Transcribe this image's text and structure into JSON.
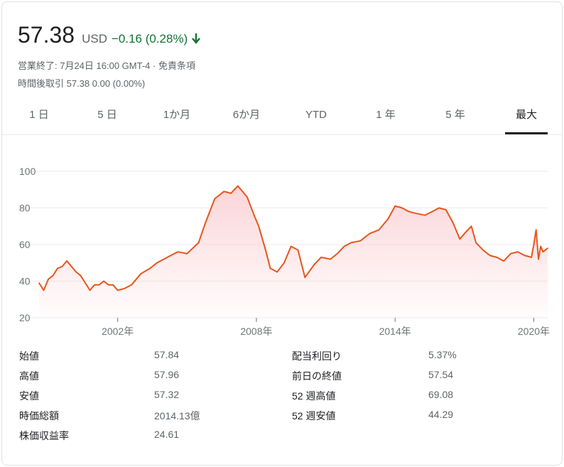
{
  "quote": {
    "price": "57.38",
    "currency": "USD",
    "change": "−0.16 (0.28%)",
    "direction": "down",
    "status_line": "営業終了: 7月24日 16:00 GMT-4 · ",
    "disclaimer_link": "免責条項",
    "after_hours": "時間後取引 57.38 0.00 (0.00%)",
    "change_color": "#137333"
  },
  "tabs": [
    {
      "label": "1 日",
      "active": false
    },
    {
      "label": "5 日",
      "active": false
    },
    {
      "label": "1か月",
      "active": false
    },
    {
      "label": "6か月",
      "active": false
    },
    {
      "label": "YTD",
      "active": false
    },
    {
      "label": "1 年",
      "active": false
    },
    {
      "label": "5 年",
      "active": false
    },
    {
      "label": "最大",
      "active": true
    }
  ],
  "chart_data": {
    "type": "area",
    "y_ticks": [
      "100",
      "80",
      "60",
      "40",
      "20"
    ],
    "x_ticks": [
      "2002年",
      "2008年",
      "2014年",
      "2020年"
    ],
    "ylim": [
      20,
      100
    ],
    "xlim": [
      1998.6,
      2020.6
    ],
    "grid": true,
    "line_color": "#e8551b",
    "fill_color": "#fbd3d6",
    "series": [
      {
        "x": [
          1998.6,
          1998.8,
          1999.0,
          1999.2,
          1999.4,
          1999.6,
          1999.8,
          2000.0,
          2000.2,
          2000.4,
          2000.6,
          2000.8,
          2001.0,
          2001.2,
          2001.4,
          2001.6,
          2001.8,
          2002.0,
          2002.3,
          2002.6,
          2003.0,
          2003.4,
          2003.7,
          2004.0,
          2004.3,
          2004.6,
          2005.0,
          2005.5,
          2005.8,
          2006.2,
          2006.6,
          2006.9,
          2007.2,
          2007.6,
          2007.9,
          2008.1,
          2008.4,
          2008.6,
          2008.9,
          2009.2,
          2009.5,
          2009.8,
          2010.1,
          2010.5,
          2010.8,
          2011.2,
          2011.5,
          2011.8,
          2012.1,
          2012.5,
          2012.9,
          2013.3,
          2013.7,
          2014.0,
          2014.3,
          2014.6,
          2014.9,
          2015.3,
          2015.6,
          2015.9,
          2016.2,
          2016.5,
          2016.8,
          2017.0,
          2017.3,
          2017.5,
          2017.8,
          2018.1,
          2018.4,
          2018.7,
          2019.0,
          2019.3,
          2019.6,
          2019.9,
          2020.0,
          2020.1,
          2020.2,
          2020.3,
          2020.4,
          2020.6
        ],
        "y": [
          39,
          35,
          41,
          43,
          47,
          48,
          51,
          48,
          45,
          43,
          39,
          35,
          38,
          38,
          40,
          38,
          38,
          35,
          36,
          38,
          44,
          47,
          50,
          52,
          54,
          56,
          55,
          61,
          72,
          85,
          89,
          88,
          92,
          86,
          76,
          70,
          57,
          47,
          45,
          50,
          59,
          57,
          42,
          49,
          53,
          52,
          55,
          59,
          61,
          62,
          66,
          68,
          74,
          81,
          80,
          78,
          77,
          76,
          78,
          80,
          79,
          72,
          63,
          66,
          70,
          61,
          57,
          54,
          53,
          51,
          55,
          56,
          54,
          53,
          60,
          68,
          52,
          59,
          56,
          58
        ]
      }
    ]
  },
  "stats": {
    "left": [
      {
        "label": "始値",
        "value": "57.84"
      },
      {
        "label": "高値",
        "value": "57.96"
      },
      {
        "label": "安値",
        "value": "57.32"
      },
      {
        "label": "時価総額",
        "value": "2014.13億"
      },
      {
        "label": "株価収益率",
        "value": "24.61"
      }
    ],
    "right": [
      {
        "label": "配当利回り",
        "value": "5.37%"
      },
      {
        "label": "前日の終値",
        "value": "57.54"
      },
      {
        "label": "52 週高値",
        "value": "69.08"
      },
      {
        "label": "52 週安値",
        "value": "44.29"
      }
    ]
  }
}
